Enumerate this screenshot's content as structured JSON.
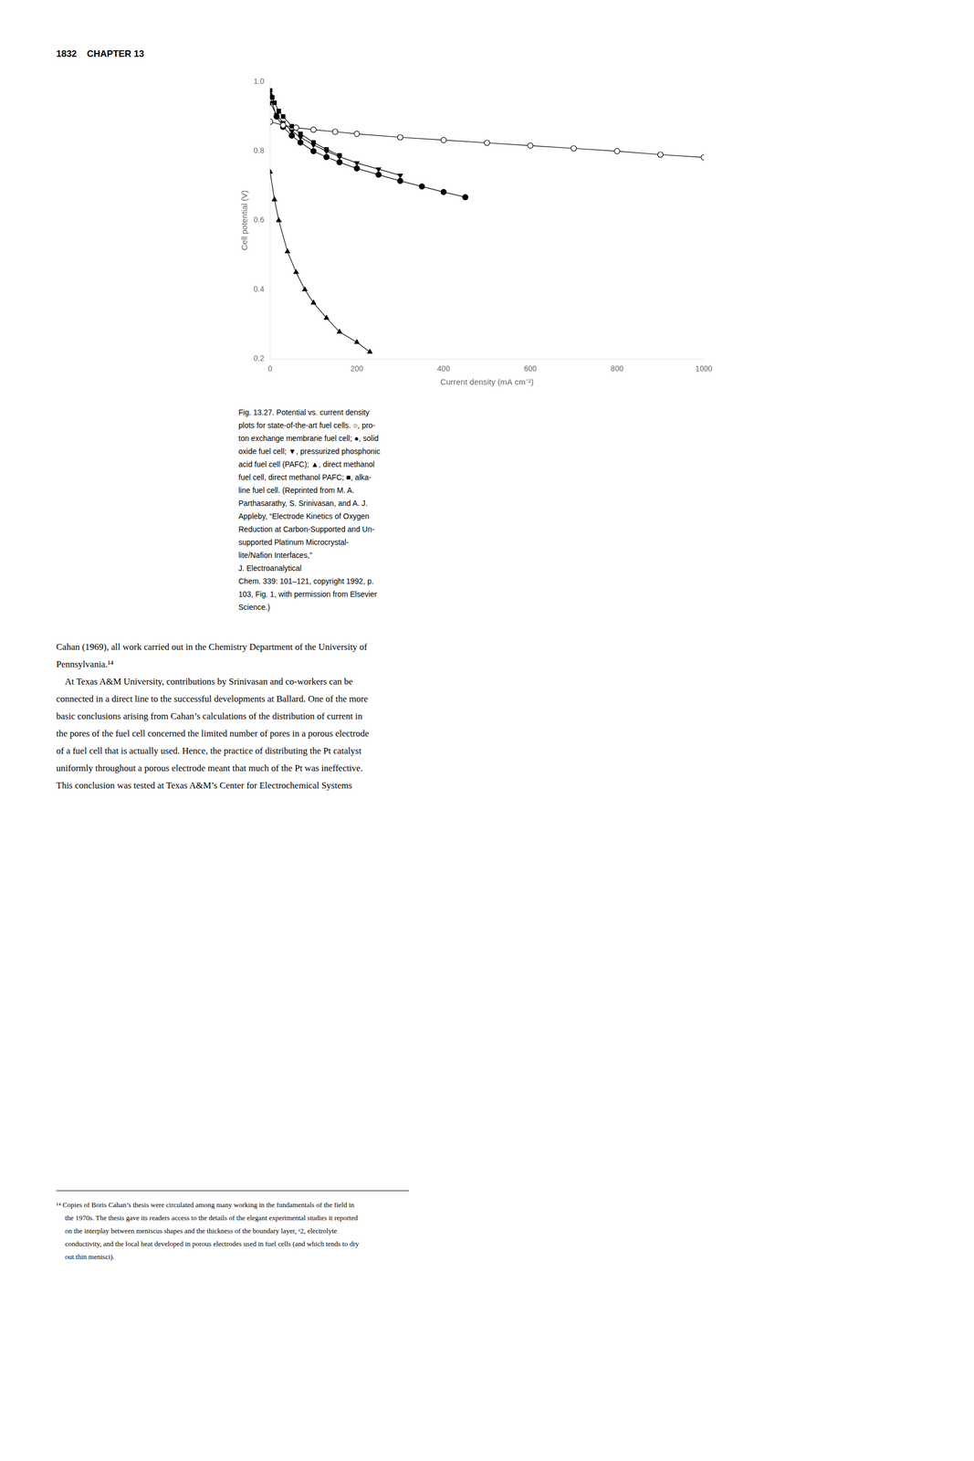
{
  "chart_data": {
    "type": "line",
    "x_label": "Current density (mA cm⁻²)",
    "y_label": "Cell potential (V)",
    "xlim": [
      0,
      1000
    ],
    "ylim": [
      0.2,
      1.0
    ],
    "xticks": [
      0,
      200,
      400,
      600,
      800,
      1000
    ],
    "yticks": [
      0.2,
      0.4,
      0.6,
      0.8,
      {
        "value": 1.0,
        "label": "1.0"
      }
    ],
    "grid": false,
    "series": [
      {
        "x": [
          0,
          30,
          60,
          100,
          150,
          200,
          300,
          400,
          500,
          600,
          700,
          800,
          900,
          1000
        ],
        "values": [
          0.885,
          0.875,
          0.868,
          0.862,
          0.856,
          0.85,
          0.84,
          0.832,
          0.824,
          0.816,
          0.808,
          0.8,
          0.79,
          0.782
        ],
        "marker": "open_circle",
        "color": "black",
        "line_style": "solid"
      },
      {
        "x": [
          0,
          15,
          30,
          50,
          70,
          100,
          130,
          160,
          200,
          250,
          300,
          350,
          400,
          450
        ],
        "values": [
          0.96,
          0.9,
          0.87,
          0.845,
          0.825,
          0.8,
          0.783,
          0.768,
          0.75,
          0.732,
          0.714,
          0.698,
          0.682,
          0.667
        ],
        "marker": "circle",
        "color": "black",
        "line_style": "solid"
      },
      {
        "x": [
          0,
          15,
          30,
          50,
          70,
          100,
          130,
          160,
          200,
          250,
          300
        ],
        "values": [
          0.94,
          0.905,
          0.882,
          0.858,
          0.84,
          0.818,
          0.8,
          0.784,
          0.766,
          0.748,
          0.73
        ],
        "marker": "triangle_down",
        "color": "black",
        "line_style": "solid"
      },
      {
        "x": [
          0,
          5,
          10,
          20,
          30,
          50,
          70,
          100,
          130,
          160
        ],
        "values": [
          0.975,
          0.955,
          0.94,
          0.916,
          0.9,
          0.872,
          0.85,
          0.825,
          0.805,
          0.788
        ],
        "marker": "square",
        "color": "black",
        "line_style": "solid"
      },
      {
        "x": [
          0,
          10,
          20,
          40,
          60,
          80,
          100,
          130,
          160,
          200,
          230
        ],
        "values": [
          0.74,
          0.66,
          0.6,
          0.51,
          0.45,
          0.4,
          0.362,
          0.318,
          0.278,
          0.248,
          0.22
        ],
        "marker": "triangle_up",
        "color": "black",
        "line_style": "solid"
      }
    ],
    "annotations": [
      [
        "1832    CHAPTER 13"
      ],
      [
        "Fig. 13.27. Potential vs. current density",
        "plots for state-of-the-art fuel cells. ○, pro-",
        "ton exchange membrane fuel cell; ●, solid",
        "oxide fuel cell; ▼, pressurized phosphonic",
        "acid fuel cell (PAFC); ▲, direct methanol",
        "fuel cell, direct methanol PAFC; ■, alka-",
        "line fuel cell. (Reprinted from M. A.",
        "Parthasarathy, S. Srinivasan, and A. J.",
        "Appleby, “Electrode Kinetics of Oxygen",
        "Reduction at Carbon-Supported and Un-",
        "supported Platinum Microcrystal-",
        "lite/Nafion Interfaces,”",
        "J. Electroanalytical",
        "Chem. 339: 101–121, copyright 1992, p.",
        "103, Fig. 1, with permission from Elsevier",
        "Science.)"
      ],
      [
        "Cahan (1969), all work carried out in the Chemistry Department of the University of",
        "Pennsylvania.¹⁴",
        "    At Texas A&M University, contributions by Srinivasan and co-workers can be",
        "connected in a direct line to the successful developments at Ballard. One of the more",
        "basic conclusions arising from Cahan’s calculations of the distribution of current in",
        "the pores of the fuel cell concerned the limited number of pores in a porous electrode",
        "of a fuel cell that is actually used. Hence, the practice of distributing the Pt catalyst",
        "uniformly throughout a porous electrode meant that much of the Pt was ineffective.",
        "This conclusion was tested at Texas A&M’s Center for Electrochemical Systems"
      ],
      [
        "¹⁴ Copies of Boris Cahan’s thesis were circulated among many working in the fundamentals of the field in",
        "     the 1970s. The thesis gave its readers access to the details of the elegant experimental studies it reported",
        "     on the interplay between meniscus shapes and the thickness of the boundary layer, ᵒ2, electrolyte",
        "     conductivity, and the local heat developed in porous electrodes used in fuel cells (and which tends to dry",
        "     out thin menisci)."
      ]
    ]
  }
}
